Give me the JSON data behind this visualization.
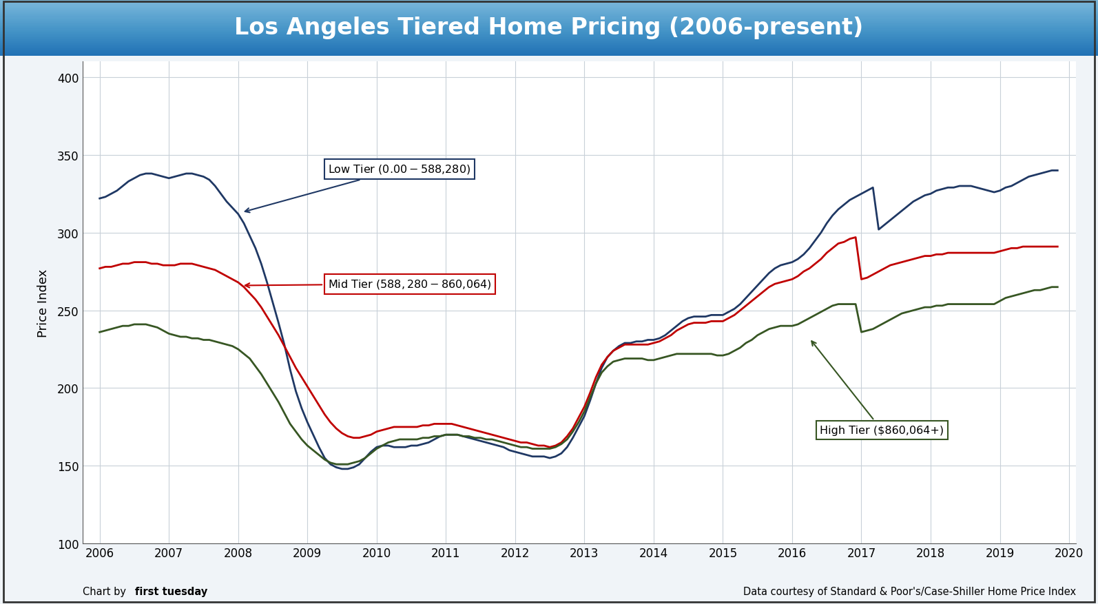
{
  "title": "Los Angeles Tiered Home Pricing (2006-present)",
  "ylabel": "Price Index",
  "ylim": [
    100,
    410
  ],
  "xlim": [
    2005.75,
    2020.1
  ],
  "yticks": [
    100,
    150,
    200,
    250,
    300,
    350,
    400
  ],
  "xtick_labels": [
    "2006",
    "2007",
    "2008",
    "2009",
    "2010",
    "2011",
    "2012",
    "2013",
    "2014",
    "2015",
    "2016",
    "2017",
    "2018",
    "2019",
    "2020"
  ],
  "xtick_positions": [
    2006,
    2007,
    2008,
    2009,
    2010,
    2011,
    2012,
    2013,
    2014,
    2015,
    2016,
    2017,
    2018,
    2019,
    2020
  ],
  "footer_left_normal": "Chart by ",
  "footer_left_bold": "first tuesday",
  "footer_right": "Data courtesy of Standard & Poor's/Case-Shiller Home Price Index",
  "plot_bg_color": "white",
  "outer_bg_color": "#e8f0f7",
  "low_tier_color": "#1f3864",
  "mid_tier_color": "#c00000",
  "high_tier_color": "#375623",
  "low_tier_label": "Low Tier ($0.00 - $588,280)",
  "mid_tier_label": "Mid Tier ($588,280 - $860,064)",
  "high_tier_label": "High Tier ($860,064+)",
  "low_tier_x": [
    2006.0,
    2006.083,
    2006.167,
    2006.25,
    2006.333,
    2006.417,
    2006.5,
    2006.583,
    2006.667,
    2006.75,
    2006.833,
    2006.917,
    2007.0,
    2007.083,
    2007.167,
    2007.25,
    2007.333,
    2007.417,
    2007.5,
    2007.583,
    2007.667,
    2007.75,
    2007.833,
    2007.917,
    2008.0,
    2008.083,
    2008.167,
    2008.25,
    2008.333,
    2008.417,
    2008.5,
    2008.583,
    2008.667,
    2008.75,
    2008.833,
    2008.917,
    2009.0,
    2009.083,
    2009.167,
    2009.25,
    2009.333,
    2009.417,
    2009.5,
    2009.583,
    2009.667,
    2009.75,
    2009.833,
    2009.917,
    2010.0,
    2010.083,
    2010.167,
    2010.25,
    2010.333,
    2010.417,
    2010.5,
    2010.583,
    2010.667,
    2010.75,
    2010.833,
    2010.917,
    2011.0,
    2011.083,
    2011.167,
    2011.25,
    2011.333,
    2011.417,
    2011.5,
    2011.583,
    2011.667,
    2011.75,
    2011.833,
    2011.917,
    2012.0,
    2012.083,
    2012.167,
    2012.25,
    2012.333,
    2012.417,
    2012.5,
    2012.583,
    2012.667,
    2012.75,
    2012.833,
    2012.917,
    2013.0,
    2013.083,
    2013.167,
    2013.25,
    2013.333,
    2013.417,
    2013.5,
    2013.583,
    2013.667,
    2013.75,
    2013.833,
    2013.917,
    2014.0,
    2014.083,
    2014.167,
    2014.25,
    2014.333,
    2014.417,
    2014.5,
    2014.583,
    2014.667,
    2014.75,
    2014.833,
    2014.917,
    2015.0,
    2015.083,
    2015.167,
    2015.25,
    2015.333,
    2015.417,
    2015.5,
    2015.583,
    2015.667,
    2015.75,
    2015.833,
    2015.917,
    2016.0,
    2016.083,
    2016.167,
    2016.25,
    2016.333,
    2016.417,
    2016.5,
    2016.583,
    2016.667,
    2016.75,
    2016.833,
    2016.917,
    2017.0,
    2017.083,
    2017.167,
    2017.25,
    2017.333,
    2017.417,
    2017.5,
    2017.583,
    2017.667,
    2017.75,
    2017.833,
    2017.917,
    2018.0,
    2018.083,
    2018.167,
    2018.25,
    2018.333,
    2018.417,
    2018.5,
    2018.583,
    2018.667,
    2018.75,
    2018.833,
    2018.917,
    2019.0,
    2019.083,
    2019.167,
    2019.25,
    2019.333,
    2019.417,
    2019.5,
    2019.583,
    2019.667,
    2019.75,
    2019.833
  ],
  "low_tier_y": [
    322,
    323,
    325,
    327,
    330,
    333,
    335,
    337,
    338,
    338,
    337,
    336,
    335,
    336,
    337,
    338,
    338,
    337,
    336,
    334,
    330,
    325,
    320,
    316,
    312,
    306,
    298,
    290,
    280,
    268,
    255,
    242,
    228,
    212,
    198,
    187,
    178,
    170,
    162,
    155,
    151,
    149,
    148,
    148,
    149,
    151,
    155,
    159,
    162,
    163,
    163,
    162,
    162,
    162,
    163,
    163,
    164,
    165,
    167,
    169,
    170,
    170,
    170,
    169,
    168,
    167,
    166,
    165,
    164,
    163,
    162,
    160,
    159,
    158,
    157,
    156,
    156,
    156,
    155,
    156,
    158,
    162,
    168,
    175,
    182,
    192,
    203,
    213,
    220,
    224,
    227,
    229,
    229,
    230,
    230,
    231,
    231,
    232,
    234,
    237,
    240,
    243,
    245,
    246,
    246,
    246,
    247,
    247,
    247,
    249,
    251,
    254,
    258,
    262,
    266,
    270,
    274,
    277,
    279,
    280,
    281,
    283,
    286,
    290,
    295,
    300,
    306,
    311,
    315,
    318,
    321,
    323,
    325,
    327,
    329,
    302,
    305,
    308,
    311,
    314,
    317,
    320,
    322,
    324,
    325,
    327,
    328,
    329,
    329,
    330,
    330,
    330,
    329,
    328,
    327,
    326,
    327,
    329,
    330,
    332,
    334,
    336,
    337,
    338,
    339,
    340,
    340
  ],
  "mid_tier_x": [
    2006.0,
    2006.083,
    2006.167,
    2006.25,
    2006.333,
    2006.417,
    2006.5,
    2006.583,
    2006.667,
    2006.75,
    2006.833,
    2006.917,
    2007.0,
    2007.083,
    2007.167,
    2007.25,
    2007.333,
    2007.417,
    2007.5,
    2007.583,
    2007.667,
    2007.75,
    2007.833,
    2007.917,
    2008.0,
    2008.083,
    2008.167,
    2008.25,
    2008.333,
    2008.417,
    2008.5,
    2008.583,
    2008.667,
    2008.75,
    2008.833,
    2008.917,
    2009.0,
    2009.083,
    2009.167,
    2009.25,
    2009.333,
    2009.417,
    2009.5,
    2009.583,
    2009.667,
    2009.75,
    2009.833,
    2009.917,
    2010.0,
    2010.083,
    2010.167,
    2010.25,
    2010.333,
    2010.417,
    2010.5,
    2010.583,
    2010.667,
    2010.75,
    2010.833,
    2010.917,
    2011.0,
    2011.083,
    2011.167,
    2011.25,
    2011.333,
    2011.417,
    2011.5,
    2011.583,
    2011.667,
    2011.75,
    2011.833,
    2011.917,
    2012.0,
    2012.083,
    2012.167,
    2012.25,
    2012.333,
    2012.417,
    2012.5,
    2012.583,
    2012.667,
    2012.75,
    2012.833,
    2012.917,
    2013.0,
    2013.083,
    2013.167,
    2013.25,
    2013.333,
    2013.417,
    2013.5,
    2013.583,
    2013.667,
    2013.75,
    2013.833,
    2013.917,
    2014.0,
    2014.083,
    2014.167,
    2014.25,
    2014.333,
    2014.417,
    2014.5,
    2014.583,
    2014.667,
    2014.75,
    2014.833,
    2014.917,
    2015.0,
    2015.083,
    2015.167,
    2015.25,
    2015.333,
    2015.417,
    2015.5,
    2015.583,
    2015.667,
    2015.75,
    2015.833,
    2015.917,
    2016.0,
    2016.083,
    2016.167,
    2016.25,
    2016.333,
    2016.417,
    2016.5,
    2016.583,
    2016.667,
    2016.75,
    2016.833,
    2016.917,
    2017.0,
    2017.083,
    2017.167,
    2017.25,
    2017.333,
    2017.417,
    2017.5,
    2017.583,
    2017.667,
    2017.75,
    2017.833,
    2017.917,
    2018.0,
    2018.083,
    2018.167,
    2018.25,
    2018.333,
    2018.417,
    2018.5,
    2018.583,
    2018.667,
    2018.75,
    2018.833,
    2018.917,
    2019.0,
    2019.083,
    2019.167,
    2019.25,
    2019.333,
    2019.417,
    2019.5,
    2019.583,
    2019.667,
    2019.75,
    2019.833
  ],
  "mid_tier_y": [
    277,
    278,
    278,
    279,
    280,
    280,
    281,
    281,
    281,
    280,
    280,
    279,
    279,
    279,
    280,
    280,
    280,
    279,
    278,
    277,
    276,
    274,
    272,
    270,
    268,
    265,
    261,
    257,
    252,
    246,
    240,
    234,
    227,
    220,
    213,
    207,
    201,
    195,
    189,
    183,
    178,
    174,
    171,
    169,
    168,
    168,
    169,
    170,
    172,
    173,
    174,
    175,
    175,
    175,
    175,
    175,
    176,
    176,
    177,
    177,
    177,
    177,
    176,
    175,
    174,
    173,
    172,
    171,
    170,
    169,
    168,
    167,
    166,
    165,
    165,
    164,
    163,
    163,
    162,
    163,
    165,
    169,
    174,
    181,
    188,
    197,
    207,
    215,
    220,
    224,
    226,
    228,
    228,
    228,
    228,
    228,
    229,
    230,
    232,
    234,
    237,
    239,
    241,
    242,
    242,
    242,
    243,
    243,
    243,
    245,
    247,
    250,
    253,
    256,
    259,
    262,
    265,
    267,
    268,
    269,
    270,
    272,
    275,
    277,
    280,
    283,
    287,
    290,
    293,
    294,
    296,
    297,
    270,
    271,
    273,
    275,
    277,
    279,
    280,
    281,
    282,
    283,
    284,
    285,
    285,
    286,
    286,
    287,
    287,
    287,
    287,
    287,
    287,
    287,
    287,
    287,
    288,
    289,
    290,
    290,
    291,
    291,
    291,
    291,
    291,
    291,
    291
  ],
  "high_tier_x": [
    2006.0,
    2006.083,
    2006.167,
    2006.25,
    2006.333,
    2006.417,
    2006.5,
    2006.583,
    2006.667,
    2006.75,
    2006.833,
    2006.917,
    2007.0,
    2007.083,
    2007.167,
    2007.25,
    2007.333,
    2007.417,
    2007.5,
    2007.583,
    2007.667,
    2007.75,
    2007.833,
    2007.917,
    2008.0,
    2008.083,
    2008.167,
    2008.25,
    2008.333,
    2008.417,
    2008.5,
    2008.583,
    2008.667,
    2008.75,
    2008.833,
    2008.917,
    2009.0,
    2009.083,
    2009.167,
    2009.25,
    2009.333,
    2009.417,
    2009.5,
    2009.583,
    2009.667,
    2009.75,
    2009.833,
    2009.917,
    2010.0,
    2010.083,
    2010.167,
    2010.25,
    2010.333,
    2010.417,
    2010.5,
    2010.583,
    2010.667,
    2010.75,
    2010.833,
    2010.917,
    2011.0,
    2011.083,
    2011.167,
    2011.25,
    2011.333,
    2011.417,
    2011.5,
    2011.583,
    2011.667,
    2011.75,
    2011.833,
    2011.917,
    2012.0,
    2012.083,
    2012.167,
    2012.25,
    2012.333,
    2012.417,
    2012.5,
    2012.583,
    2012.667,
    2012.75,
    2012.833,
    2012.917,
    2013.0,
    2013.083,
    2013.167,
    2013.25,
    2013.333,
    2013.417,
    2013.5,
    2013.583,
    2013.667,
    2013.75,
    2013.833,
    2013.917,
    2014.0,
    2014.083,
    2014.167,
    2014.25,
    2014.333,
    2014.417,
    2014.5,
    2014.583,
    2014.667,
    2014.75,
    2014.833,
    2014.917,
    2015.0,
    2015.083,
    2015.167,
    2015.25,
    2015.333,
    2015.417,
    2015.5,
    2015.583,
    2015.667,
    2015.75,
    2015.833,
    2015.917,
    2016.0,
    2016.083,
    2016.167,
    2016.25,
    2016.333,
    2016.417,
    2016.5,
    2016.583,
    2016.667,
    2016.75,
    2016.833,
    2016.917,
    2017.0,
    2017.083,
    2017.167,
    2017.25,
    2017.333,
    2017.417,
    2017.5,
    2017.583,
    2017.667,
    2017.75,
    2017.833,
    2017.917,
    2018.0,
    2018.083,
    2018.167,
    2018.25,
    2018.333,
    2018.417,
    2018.5,
    2018.583,
    2018.667,
    2018.75,
    2018.833,
    2018.917,
    2019.0,
    2019.083,
    2019.167,
    2019.25,
    2019.333,
    2019.417,
    2019.5,
    2019.583,
    2019.667,
    2019.75,
    2019.833
  ],
  "high_tier_y": [
    236,
    237,
    238,
    239,
    240,
    240,
    241,
    241,
    241,
    240,
    239,
    237,
    235,
    234,
    233,
    233,
    232,
    232,
    231,
    231,
    230,
    229,
    228,
    227,
    225,
    222,
    219,
    214,
    209,
    203,
    197,
    191,
    184,
    177,
    172,
    167,
    163,
    160,
    157,
    154,
    152,
    151,
    151,
    151,
    152,
    153,
    155,
    158,
    161,
    163,
    165,
    166,
    167,
    167,
    167,
    167,
    168,
    168,
    169,
    169,
    170,
    170,
    170,
    169,
    169,
    168,
    168,
    167,
    167,
    166,
    165,
    164,
    163,
    162,
    162,
    161,
    161,
    161,
    161,
    162,
    164,
    167,
    172,
    178,
    185,
    194,
    203,
    210,
    214,
    217,
    218,
    219,
    219,
    219,
    219,
    218,
    218,
    219,
    220,
    221,
    222,
    222,
    222,
    222,
    222,
    222,
    222,
    221,
    221,
    222,
    224,
    226,
    229,
    231,
    234,
    236,
    238,
    239,
    240,
    240,
    240,
    241,
    243,
    245,
    247,
    249,
    251,
    253,
    254,
    254,
    254,
    254,
    236,
    237,
    238,
    240,
    242,
    244,
    246,
    248,
    249,
    250,
    251,
    252,
    252,
    253,
    253,
    254,
    254,
    254,
    254,
    254,
    254,
    254,
    254,
    254,
    256,
    258,
    259,
    260,
    261,
    262,
    263,
    263,
    264,
    265,
    265
  ]
}
